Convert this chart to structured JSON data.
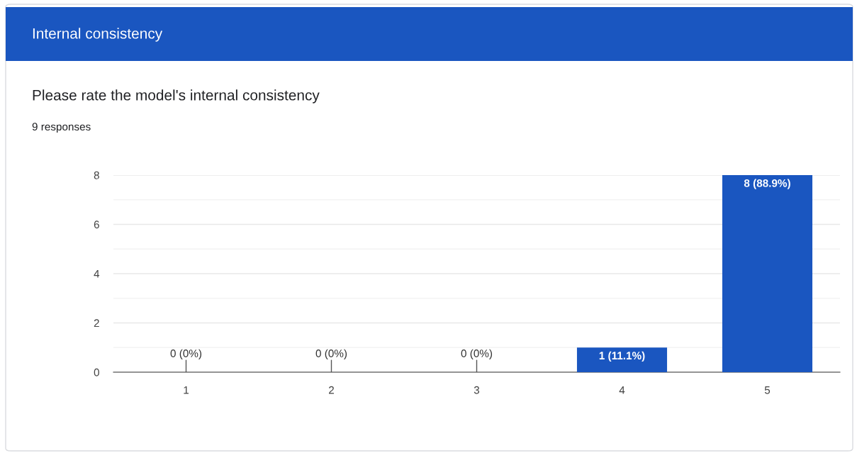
{
  "chart_data": {
    "type": "bar",
    "title": "Internal consistency",
    "subtitle": "Please rate the model's internal consistency",
    "annotations": [
      "9 responses"
    ],
    "categories": [
      "1",
      "2",
      "3",
      "4",
      "5"
    ],
    "values": [
      0,
      0,
      0,
      1,
      8
    ],
    "value_labels": [
      "0 (0%)",
      "0 (0%)",
      "0 (0%)",
      "1 (11.1%)",
      "8 (88.9%)"
    ],
    "color": "#1a56c0",
    "ylim": [
      0,
      8
    ],
    "yticks": [
      0,
      {
        "value": 1,
        "label": null
      },
      2,
      {
        "value": 3,
        "label": null
      },
      4,
      {
        "value": 5,
        "label": null
      },
      6,
      {
        "value": 7,
        "label": null
      },
      8
    ],
    "grid": "y"
  }
}
